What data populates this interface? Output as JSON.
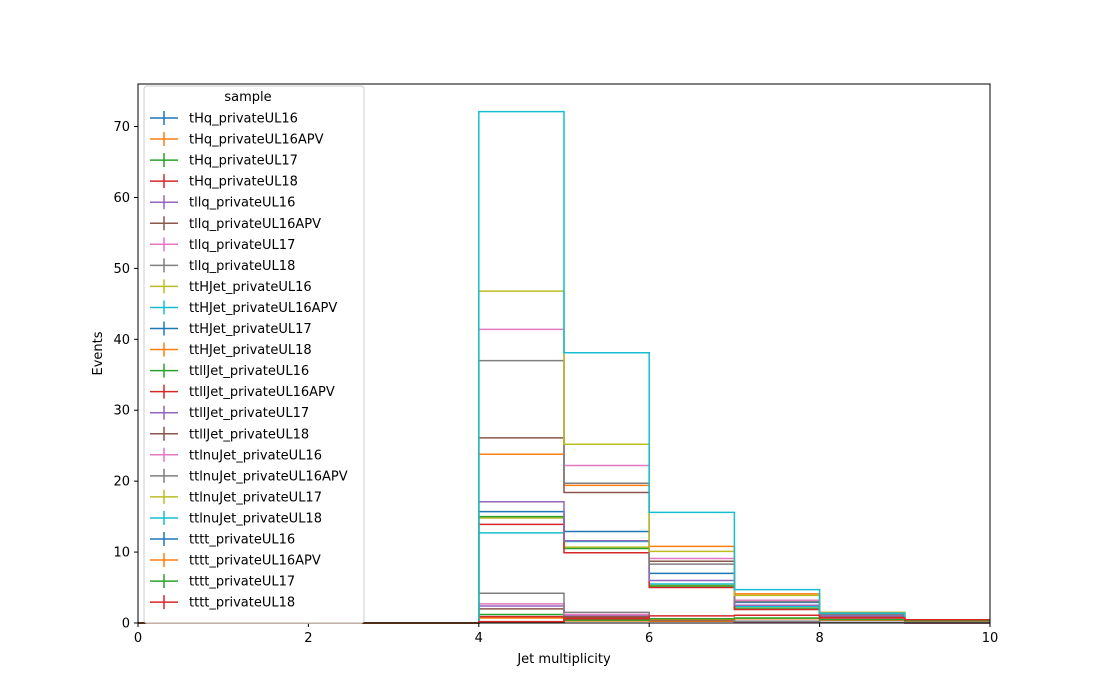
{
  "chart_data": {
    "type": "step",
    "xlabel": "Jet multiplicity",
    "ylabel": "Events",
    "xlim": [
      0,
      10
    ],
    "ylim": [
      0,
      76
    ],
    "xticks": [
      0,
      2,
      4,
      6,
      8,
      10
    ],
    "yticks": [
      0,
      10,
      20,
      30,
      40,
      50,
      60,
      70
    ],
    "bin_edges": [
      0,
      1,
      2,
      3,
      4,
      5,
      6,
      7,
      8,
      9,
      10
    ],
    "legend": {
      "title": "sample",
      "placement": "upper-left"
    },
    "series": [
      {
        "name": "tHq_privateUL16",
        "color": "#1f77b4",
        "values": [
          0,
          0,
          0,
          0,
          0.8,
          0.6,
          0.3,
          0.15,
          0.05,
          0.02
        ]
      },
      {
        "name": "tHq_privateUL16APV",
        "color": "#ff7f0e",
        "values": [
          0,
          0,
          0,
          0,
          0.7,
          0.5,
          0.25,
          0.12,
          0.04,
          0.02
        ]
      },
      {
        "name": "tHq_privateUL17",
        "color": "#2ca02c",
        "values": [
          0,
          0,
          0,
          0,
          1.2,
          0.9,
          0.4,
          0.2,
          0.06,
          0.03
        ]
      },
      {
        "name": "tHq_privateUL18",
        "color": "#d62728",
        "values": [
          0,
          0,
          0,
          0,
          0.9,
          0.7,
          0.35,
          0.18,
          0.05,
          0.02
        ]
      },
      {
        "name": "tllq_privateUL16",
        "color": "#9467bd",
        "values": [
          0,
          0,
          0,
          0,
          2.4,
          1.0,
          0.4,
          0.15,
          0.05,
          0.02
        ]
      },
      {
        "name": "tllq_privateUL16APV",
        "color": "#8c564b",
        "values": [
          0,
          0,
          0,
          0,
          2.0,
          0.9,
          0.35,
          0.12,
          0.04,
          0.02
        ]
      },
      {
        "name": "tllq_privateUL17",
        "color": "#e377c2",
        "values": [
          0,
          0,
          0,
          0,
          2.7,
          1.2,
          0.5,
          0.2,
          0.06,
          0.02
        ]
      },
      {
        "name": "tllq_privateUL18",
        "color": "#7f7f7f",
        "values": [
          0,
          0,
          0,
          0,
          4.2,
          1.5,
          0.6,
          0.25,
          0.08,
          0.03
        ]
      },
      {
        "name": "ttHJet_privateUL16",
        "color": "#bcbd22",
        "values": [
          0,
          0,
          0,
          0,
          14.8,
          10.7,
          5.3,
          2.2,
          0.8,
          0.3
        ]
      },
      {
        "name": "ttHJet_privateUL16APV",
        "color": "#17becf",
        "values": [
          0,
          0,
          0,
          0,
          12.7,
          11.5,
          5.5,
          2.3,
          0.8,
          0.3
        ]
      },
      {
        "name": "ttHJet_privateUL17",
        "color": "#1f77b4",
        "values": [
          0,
          0,
          0,
          0,
          15.7,
          12.9,
          7.0,
          2.9,
          1.0,
          0.35
        ]
      },
      {
        "name": "ttHJet_privateUL18",
        "color": "#ff7f0e",
        "values": [
          0,
          0,
          0,
          0,
          23.8,
          19.4,
          10.8,
          4.1,
          1.5,
          0.45
        ]
      },
      {
        "name": "ttllJet_privateUL16",
        "color": "#2ca02c",
        "values": [
          0,
          0,
          0,
          0,
          15.0,
          10.5,
          5.2,
          2.0,
          0.9,
          0.3
        ]
      },
      {
        "name": "ttllJet_privateUL16APV",
        "color": "#d62728",
        "values": [
          0,
          0,
          0,
          0,
          13.9,
          9.9,
          5.0,
          1.9,
          0.8,
          0.28
        ]
      },
      {
        "name": "ttllJet_privateUL17",
        "color": "#9467bd",
        "values": [
          0,
          0,
          0,
          0,
          17.1,
          11.6,
          6.0,
          2.5,
          1.0,
          0.32
        ]
      },
      {
        "name": "ttllJet_privateUL18",
        "color": "#8c564b",
        "values": [
          0,
          0,
          0,
          0,
          26.1,
          18.4,
          8.7,
          3.0,
          1.3,
          0.4
        ]
      },
      {
        "name": "ttlnuJet_privateUL16",
        "color": "#e377c2",
        "values": [
          0,
          0,
          0,
          0,
          41.4,
          22.2,
          9.1,
          3.2,
          1.3,
          0.4
        ]
      },
      {
        "name": "ttlnuJet_privateUL16APV",
        "color": "#7f7f7f",
        "values": [
          0,
          0,
          0,
          0,
          37.0,
          19.7,
          8.3,
          3.0,
          1.2,
          0.38
        ]
      },
      {
        "name": "ttlnuJet_privateUL17",
        "color": "#bcbd22",
        "values": [
          0,
          0,
          0,
          0,
          46.8,
          25.2,
          10.1,
          3.9,
          1.5,
          0.42
        ]
      },
      {
        "name": "ttlnuJet_privateUL18",
        "color": "#17becf",
        "values": [
          0,
          0,
          0,
          0,
          72.1,
          38.1,
          15.6,
          4.7,
          1.4,
          0.3
        ]
      },
      {
        "name": "tttt_privateUL16",
        "color": "#1f77b4",
        "values": [
          0,
          0,
          0,
          0,
          0.1,
          0.3,
          0.5,
          0.6,
          0.4,
          0.3
        ]
      },
      {
        "name": "tttt_privateUL16APV",
        "color": "#ff7f0e",
        "values": [
          0,
          0,
          0,
          0,
          0.1,
          0.3,
          0.5,
          0.6,
          0.4,
          0.3
        ]
      },
      {
        "name": "tttt_privateUL17",
        "color": "#2ca02c",
        "values": [
          0,
          0,
          0,
          0,
          0.15,
          0.4,
          0.6,
          0.7,
          0.5,
          0.35
        ]
      },
      {
        "name": "tttt_privateUL18",
        "color": "#d62728",
        "values": [
          0,
          0,
          0,
          0,
          0.2,
          0.6,
          1.0,
          1.1,
          0.7,
          0.45
        ]
      }
    ]
  }
}
